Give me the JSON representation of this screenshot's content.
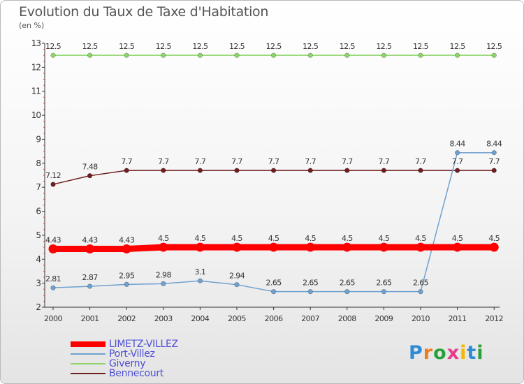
{
  "header": {
    "title": "Evolution du Taux de Taxe d'Habitation",
    "unit": "(en %)"
  },
  "chart_data": {
    "type": "line",
    "title": "Evolution du Taux de Taxe d'Habitation",
    "ylabel": "(en %)",
    "xlabel": "",
    "ylim": [
      2,
      13
    ],
    "yticks": [
      "2",
      "3",
      "4",
      "5",
      "6",
      "7",
      "8",
      "9",
      "10",
      "11",
      "12",
      "13"
    ],
    "categories": [
      "2000",
      "2001",
      "2002",
      "2003",
      "2004",
      "2005",
      "2006",
      "2007",
      "2008",
      "2009",
      "2010",
      "2011",
      "2012"
    ],
    "series": [
      {
        "name": "Giverny",
        "color": "#8fd46b",
        "values": [
          12.5,
          12.5,
          12.5,
          12.5,
          12.5,
          12.5,
          12.5,
          12.5,
          12.5,
          12.5,
          12.5,
          12.5,
          12.5
        ],
        "labels": [
          "12.5",
          "12.5",
          "12.5",
          "12.5",
          "12.5",
          "12.5",
          "12.5",
          "12.5",
          "12.5",
          "12.5",
          "12.5",
          "12.5",
          "12.5"
        ]
      },
      {
        "name": "Bennecourt",
        "color": "#6e1e1e",
        "values": [
          7.12,
          7.48,
          7.7,
          7.7,
          7.7,
          7.7,
          7.7,
          7.7,
          7.7,
          7.7,
          7.7,
          7.7,
          7.7
        ],
        "labels": [
          "7.12",
          "7.48",
          "7.7",
          "7.7",
          "7.7",
          "7.7",
          "7.7",
          "7.7",
          "7.7",
          "7.7",
          "7.7",
          "7.7",
          "7.7"
        ]
      },
      {
        "name": "Port-Villez",
        "color": "#6fa1cf",
        "values": [
          2.81,
          2.87,
          2.95,
          2.98,
          3.1,
          2.94,
          2.65,
          2.65,
          2.65,
          2.65,
          2.65,
          8.44,
          8.44
        ],
        "labels": [
          "2.81",
          "2.87",
          "2.95",
          "2.98",
          "3.1",
          "2.94",
          "2.65",
          "2.65",
          "2.65",
          "2.65",
          "2.65",
          "8.44",
          "8.44"
        ]
      },
      {
        "name": "LIMETZ-VILLEZ",
        "color": "#ff0000",
        "values": [
          4.43,
          4.43,
          4.43,
          4.5,
          4.5,
          4.5,
          4.5,
          4.5,
          4.5,
          4.5,
          4.5,
          4.5,
          4.5
        ],
        "labels": [
          "4.43",
          "4.43",
          "4.43",
          "4.5",
          "4.5",
          "4.5",
          "4.5",
          "4.5",
          "4.5",
          "4.5",
          "4.5",
          "4.5",
          "4.5"
        ]
      }
    ]
  },
  "legend": {
    "items": [
      {
        "label": "LIMETZ-VILLEZ",
        "color": "#ff0000"
      },
      {
        "label": "Port-Villez",
        "color": "#6fa1cf"
      },
      {
        "label": "Giverny",
        "color": "#8fd46b"
      },
      {
        "label": "Bennecourt",
        "color": "#6e1e1e"
      }
    ]
  },
  "brand": {
    "logo_text": "Proxiti",
    "letter_colors": [
      "#2e8bd3",
      "#f07c1b",
      "#27a13a",
      "#e63a8a",
      "#f5b800",
      "#2e8bd3",
      "#27a13a"
    ]
  }
}
